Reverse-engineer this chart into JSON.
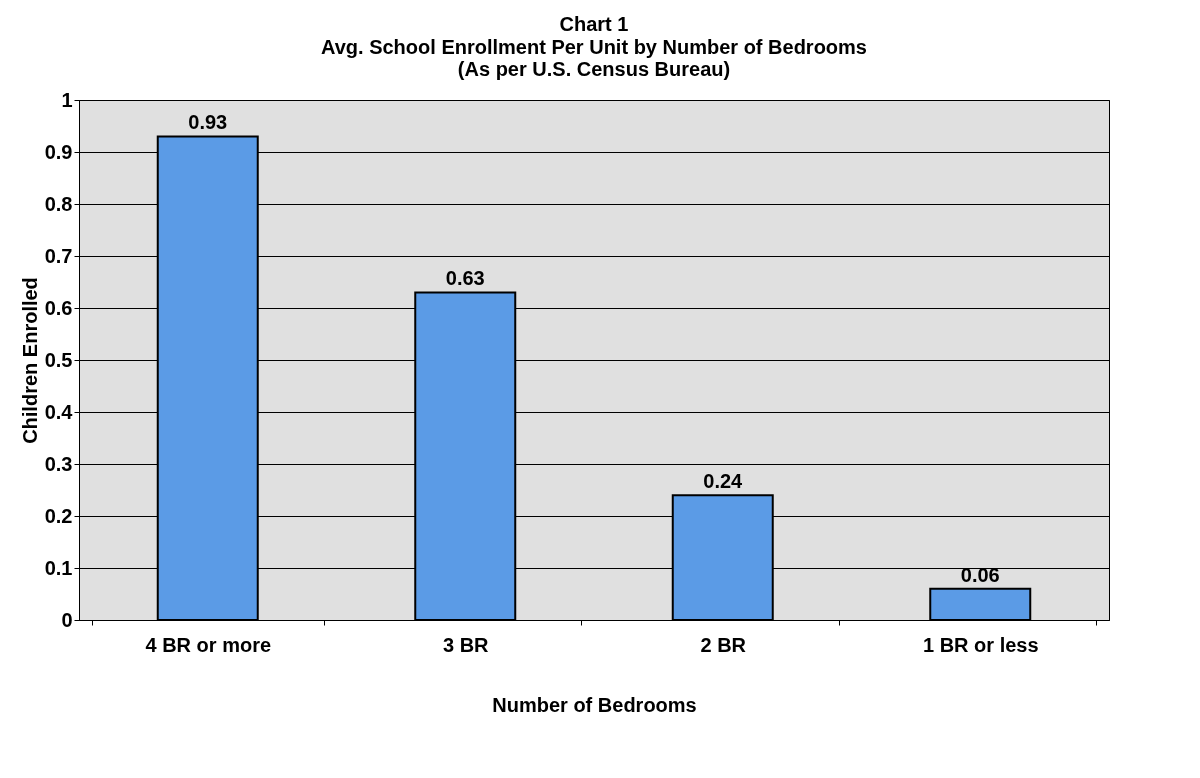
{
  "chart_data": {
    "type": "bar",
    "title": "Chart 1",
    "subtitle": "Avg. School Enrollment Per Unit by Number of Bedrooms",
    "annotations": [
      "(As per U.S. Census Bureau)"
    ],
    "xlabel": "Number of Bedrooms",
    "ylabel": "Children Enrolled",
    "categories": [
      "4 BR or more",
      "3 BR",
      "2 BR",
      "1 BR or less"
    ],
    "values": [
      0.93,
      0.63,
      0.24,
      0.06
    ],
    "color": "#5b9be6",
    "ylim": [
      0,
      1
    ],
    "yticks": [
      0,
      0.1,
      0.2,
      0.3,
      0.4,
      0.5,
      0.6,
      0.7,
      0.8,
      0.9,
      1
    ],
    "grid": "y",
    "data_labels": true
  }
}
